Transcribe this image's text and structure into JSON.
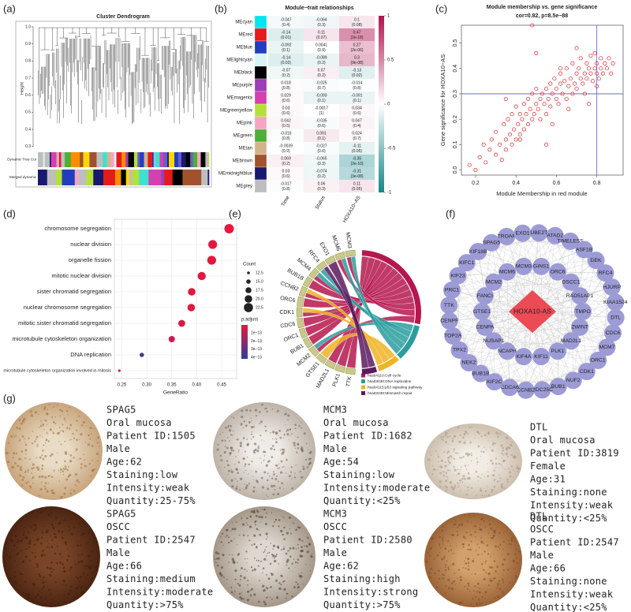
{
  "panel_labels": [
    "(a)",
    "(b)",
    "(c)",
    "(d)",
    "(e)",
    "(f)",
    "(g)"
  ],
  "chart_data": [
    {
      "type": "dendrogram",
      "title": "Cluster Dendrogram",
      "ylabel": "Height",
      "ylim": [
        0.28,
        1
      ],
      "yticks": [
        0.3,
        0.4,
        0.5,
        0.6,
        0.7,
        0.8,
        0.9,
        {
          "value": 1,
          "label": "1.0"
        }
      ],
      "track_labels": [
        "Dynamic Tree Cut",
        "Merged dynamic"
      ]
    },
    {
      "type": "heatmap",
      "title": "Module−trait relationships",
      "columns": [
        "Time",
        "Status",
        "HOXA10−AS"
      ],
      "zlim": [
        -1,
        1
      ],
      "colors": [
        "#14878a",
        "#ffffff",
        "#b0124f"
      ],
      "colorbar_ticks": [
        1,
        0.5,
        0,
        -0.5,
        -1
      ],
      "rows": [
        {
          "name": "MEcyan",
          "color": "#00e5ee",
          "r": [
            -0.047,
            -0.064,
            0.1
          ],
          "p": [
            "(0.4)",
            "(0.3)",
            "(0.08)"
          ]
        },
        {
          "name": "MEred",
          "color": "#e41a1c",
          "r": [
            -0.14,
            0.11,
            0.47
          ],
          "p": [
            "(0.01)",
            "(0.07)",
            "(2e-18)"
          ]
        },
        {
          "name": "MEblue",
          "color": "#1f3fbf",
          "r": [
            -0.092,
            0.0041,
            0.27
          ],
          "p": [
            "(0.1)",
            "(0.9)",
            "(2e-06)"
          ]
        },
        {
          "name": "MElightcyan",
          "color": "#d8f4f4",
          "r": [
            -0.14,
            -0.089,
            0.3
          ],
          "p": [
            "(0.02)",
            "(0.2)",
            "(9e-08)"
          ]
        },
        {
          "name": "MEblack",
          "color": "#000000",
          "r": [
            -0.07,
            0.07,
            -0.13
          ],
          "p": [
            "(0.2)",
            "(0.2)",
            "(0.02)"
          ]
        },
        {
          "name": "MEpurple",
          "color": "#9b3fb5",
          "r": [
            0.018,
            -0.025,
            -0.014
          ],
          "p": [
            "(0.8)",
            "(0.7)",
            "(0.8)"
          ]
        },
        {
          "name": "MEmagenta",
          "color": "#d63fb0",
          "r": [
            0.029,
            -0.093,
            -0.091
          ],
          "p": [
            "(0.6)",
            "(0.1)",
            "(0.1)"
          ]
        },
        {
          "name": "MEgreenyellow",
          "color": "#b5e03a",
          "r": [
            0.03,
            -0.0017,
            0.034
          ],
          "p": [
            "(0.6)",
            "(1)",
            "(0.6)"
          ]
        },
        {
          "name": "MEpink",
          "color": "#f4a6c0",
          "r": [
            0.042,
            -0.035,
            0.047
          ],
          "p": [
            "(0.5)",
            "(0.6)",
            "(0.4)"
          ]
        },
        {
          "name": "MEgreen",
          "color": "#4caf3a",
          "r": [
            -0.016,
            0.091,
            0.024
          ],
          "p": [
            "(0.8)",
            "(0.1)",
            "(0.7)"
          ]
        },
        {
          "name": "MEtan",
          "color": "#d2b48c",
          "r": [
            -0.0039,
            -0.027,
            -0.11
          ],
          "p": [
            "(0.9)",
            "(0.6)",
            "(0.05)"
          ]
        },
        {
          "name": "MEbrown",
          "color": "#a0522d",
          "r": [
            0.069,
            -0.065,
            -0.35
          ],
          "p": [
            "(0.2)",
            "(0.3)",
            "(2e-10)"
          ]
        },
        {
          "name": "MEmidnightblue",
          "color": "#191970",
          "r": [
            0.03,
            -0.074,
            -0.31
          ],
          "p": [
            "(0.6)",
            "(0.2)",
            "(3e-08)"
          ]
        },
        {
          "name": "MEgrey",
          "color": "#bebebe",
          "r": [
            -0.017,
            0.06,
            0.11
          ],
          "p": [
            "(0.8)",
            "(0.3)",
            "(0.05)"
          ]
        }
      ]
    },
    {
      "type": "scatter",
      "title": "Module membership vs. gene significance",
      "subtitle": "cor=0.82, p=8.5e−88",
      "xlabel": "Module Membership in red module",
      "ylabel": "Gene significance for HOXA10−AS",
      "color": "#e0242c",
      "xlim": [
        0.13,
        0.93
      ],
      "ylim": [
        -0.02,
        0.57
      ],
      "xticks": [
        0.2,
        0.4,
        0.6,
        0.8
      ],
      "yticks": [
        {
          "value": 0,
          "label": "0.0"
        },
        0.1,
        0.2,
        0.3,
        0.4,
        0.5
      ],
      "vlines": [
        0.8
      ],
      "hlines": [
        0.3
      ],
      "line_color": "#5a5ad0",
      "x": [
        0.17,
        0.2,
        0.22,
        0.24,
        0.25,
        0.27,
        0.28,
        0.3,
        0.3,
        0.32,
        0.33,
        0.34,
        0.35,
        0.35,
        0.36,
        0.37,
        0.38,
        0.38,
        0.39,
        0.4,
        0.4,
        0.41,
        0.42,
        0.42,
        0.43,
        0.44,
        0.44,
        0.45,
        0.46,
        0.46,
        0.47,
        0.48,
        0.48,
        0.49,
        0.5,
        0.5,
        0.51,
        0.52,
        0.52,
        0.53,
        0.54,
        0.55,
        0.55,
        0.56,
        0.57,
        0.57,
        0.58,
        0.59,
        0.6,
        0.6,
        0.61,
        0.62,
        0.62,
        0.63,
        0.64,
        0.65,
        0.65,
        0.66,
        0.67,
        0.68,
        0.68,
        0.69,
        0.7,
        0.7,
        0.71,
        0.72,
        0.72,
        0.73,
        0.74,
        0.75,
        0.75,
        0.76,
        0.77,
        0.77,
        0.78,
        0.79,
        0.79,
        0.8,
        0.8,
        0.81,
        0.82,
        0.82,
        0.83,
        0.84,
        0.85,
        0.86,
        0.87,
        0.88,
        0.35,
        0.42,
        0.5,
        0.58,
        0.66,
        0.74,
        0.8,
        0.48,
        0.62,
        0.76,
        0.7,
        0.55
      ],
      "y": [
        0.02,
        0,
        0.05,
        0.1,
        0.03,
        0.08,
        0.12,
        0.06,
        0.15,
        0.1,
        0.04,
        0.18,
        0.12,
        0.08,
        0.2,
        0.14,
        0.1,
        0.22,
        0.16,
        0.12,
        0.25,
        0.18,
        0.14,
        0.22,
        0.2,
        0.16,
        0.26,
        0.22,
        0.18,
        0.28,
        0.24,
        0.2,
        0.3,
        0.22,
        0.26,
        0.32,
        0.24,
        0.28,
        0.2,
        0.3,
        0.26,
        0.32,
        0.22,
        0.28,
        0.34,
        0.25,
        0.3,
        0.36,
        0.28,
        0.32,
        0.26,
        0.34,
        0.38,
        0.3,
        0.35,
        0.28,
        0.4,
        0.33,
        0.36,
        0.3,
        0.42,
        0.34,
        0.38,
        0.32,
        0.4,
        0.36,
        0.44,
        0.34,
        0.38,
        0.42,
        0.36,
        0.4,
        0.38,
        0.45,
        0.35,
        0.4,
        0.46,
        0.38,
        0.42,
        0.36,
        0.4,
        0.44,
        0.38,
        0.42,
        0.4,
        0.44,
        0.38,
        0.42,
        0.28,
        0.12,
        0.46,
        0.18,
        0.24,
        0.3,
        0.33,
        0.57,
        0.4,
        0.26,
        0.48,
        0.1
      ]
    },
    {
      "type": "dot",
      "xlabel": "GeneRatio",
      "categories": [
        "chromosome segregation",
        "nuclear division",
        "organelle fission",
        "mitotic nuclear division",
        "sister chromatid segregation",
        "nuclear chromosome segregation",
        "mitotic sister chromatid segregation",
        "microtubule cytoskeleton organization",
        "DNA replication",
        "microtubule cytoskeleton organization involved in mitosis"
      ],
      "values": [
        0.465,
        0.432,
        0.43,
        0.41,
        0.39,
        0.389,
        0.37,
        0.35,
        0.29,
        0.245
      ],
      "counts": [
        23,
        22,
        22,
        21,
        20,
        20,
        19,
        18,
        15,
        12
      ],
      "padjust": [
        5e-15,
        8e-15,
        8e-15,
        1e-14,
        2e-14,
        2e-14,
        3e-14,
        6e-14,
        3.8e-13,
        1.5e-14
      ],
      "xlim": [
        0.235,
        0.48
      ],
      "xticks": [
        0.25,
        {
          "value": 0.3,
          "label": "0.30"
        },
        0.35,
        {
          "value": 0.4,
          "label": "0.40"
        },
        0.45
      ],
      "size_title": "Count",
      "size_ticks": [
        12.5,
        {
          "value": 15,
          "label": "15.0"
        },
        17.5,
        {
          "value": 20,
          "label": "20.0"
        },
        22.5
      ],
      "color_title": "p.adjust",
      "color_lim": [
        0,
        4.2e-13
      ],
      "colors": [
        "#e8173c",
        "#2b3f9e"
      ],
      "color_ticks": [
        {
          "value": 1e-13,
          "label": "1e−13"
        },
        {
          "value": 2e-13,
          "label": "2e−13"
        },
        {
          "value": 3e-13,
          "label": "3e−13"
        },
        {
          "value": 4e-13,
          "label": "4e−13"
        }
      ]
    }
  ],
  "chord": {
    "genes": [
      "TTK",
      "PLK1",
      "MAD2L1",
      "GTSE1",
      "MCM2",
      "BUB1",
      "ORC1",
      "CDC6",
      "CDK1",
      "ORC6",
      "CCNB2",
      "BUB1B",
      "MCM4",
      "RFC4",
      "EXO1",
      "MCM6",
      "MCM3"
    ],
    "pathways": [
      {
        "name": "hsa04110:Cell cycle",
        "color": "#b5174e",
        "genes": [
          "TTK",
          "PLK1",
          "MAD2L1",
          "BUB1",
          "ORC1",
          "CDC6",
          "CDK1",
          "ORC6",
          "CCNB2",
          "BUB1B",
          "MCM4",
          "MCM6",
          "MCM3",
          "MCM2"
        ]
      },
      {
        "name": "hsa03030:DNA replication",
        "color": "#2a9d9d",
        "genes": [
          "MCM2",
          "MCM4",
          "RFC4",
          "MCM6",
          "MCM3"
        ]
      },
      {
        "name": "hsa04115:p53 signaling pathway",
        "color": "#f0b323",
        "genes": [
          "GTSE1",
          "CDK1",
          "CCNB2"
        ]
      },
      {
        "name": "hsa03430:Mismatch repair",
        "color": "#5c1a5e",
        "genes": [
          "RFC4",
          "EXO1"
        ]
      }
    ]
  },
  "network": {
    "center": "HOXA10-AS",
    "outer": [
      "TROAP",
      "EXO1",
      "UBE2T",
      "ATAD2",
      "TIMELESS",
      "ASF1B",
      "DEK",
      "RFC4",
      "HJURP",
      "KIAA1524",
      "DTL",
      "CDC6",
      "MCM7",
      "ORC1",
      "CDK1",
      "NUF2",
      "BUB1",
      "CDC25C",
      "CCNB2",
      "CDCA6",
      "KIF2C",
      "BUB1B",
      "NEK2",
      "TPX2",
      "TOP2A",
      "CENPF",
      "TTK",
      "PRC1",
      "KIF23",
      "KIFC1",
      "KIF18B",
      "SPAG5"
    ],
    "inner": [
      "MCM3",
      "GINS1",
      "ORC6",
      "DSCC1",
      "RAD51AP1",
      "TMPO",
      "ZWINT",
      "MAD2L1",
      "PLK1",
      "KIF11",
      "KIF4A",
      "NCAPH",
      "NUSAP1",
      "CENPA",
      "GTSE1",
      "FANCI",
      "MCM2",
      "MCM6"
    ]
  },
  "ihc": [
    {
      "lines": [
        "SPAG5",
        "Oral mucosa",
        "Patient ID:1505",
        "Male",
        "Age:62",
        "Staining:low",
        "Intensity:weak",
        "Quantity:25-75%"
      ]
    },
    {
      "lines": [
        "MCM3",
        "Oral mucosa",
        "Patient ID:1682",
        "Male",
        "Age:54",
        "Staining:low",
        "Intensity:moderate",
        "Quantity:<25%"
      ]
    },
    {
      "lines": [
        "DTL",
        "Oral mucosa",
        "Patient ID:3819",
        "Female",
        "Age:31",
        "Staining:none",
        "Intensity:weak",
        "Quantity:<25%"
      ]
    },
    {
      "lines": [
        "SPAG5",
        "OSCC",
        "Patient ID:2547",
        "Male",
        "Age:66",
        "Staining:medium",
        "Intensity:moderate",
        "Quantity:>75%"
      ]
    },
    {
      "lines": [
        "MCM3",
        "OSCC",
        "Patient ID:2580",
        "Male",
        "Age:62",
        "Staining:high",
        "Intensity:strong",
        "Quantity:>75%"
      ]
    },
    {
      "lines": [
        "DTL",
        "OSCC",
        "Patient ID:2547",
        "Male",
        "Age:66",
        "Staining:none",
        "Intensity:weak",
        "Quantity:<25%"
      ]
    }
  ]
}
